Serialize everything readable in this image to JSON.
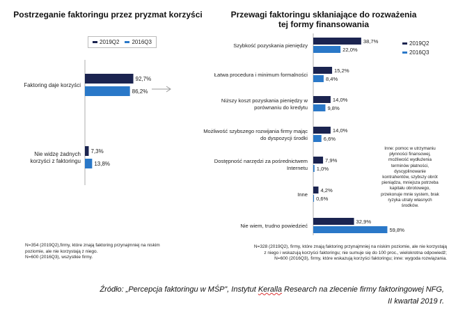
{
  "colors": {
    "q2019": "#1b2450",
    "q2016": "#2a78c8",
    "axis": "#999999",
    "arrow": "#9a9a9a"
  },
  "legend": {
    "q2019_label": "2019Q2",
    "q2016_label": "2016Q3"
  },
  "chart_data": [
    {
      "type": "bar",
      "orientation": "horizontal",
      "title": "Postrzeganie faktoringu przez pryzmat korzyści",
      "categories": [
        "Faktoring daje korzyści",
        "Nie widzę żadnych korzyści z faktoringu"
      ],
      "category_lines": [
        [
          "Faktoring daje korzyści"
        ],
        [
          "Nie widzę żadnych",
          "korzyści z faktoringu"
        ]
      ],
      "series": [
        {
          "name": "2019Q2",
          "values": [
            92.7,
            7.3
          ],
          "labels": [
            "92,7%",
            "7,3%"
          ]
        },
        {
          "name": "2016Q3",
          "values": [
            86.2,
            13.8
          ],
          "labels": [
            "86,2%",
            "13,8%"
          ]
        }
      ],
      "xlim": [
        0,
        100
      ],
      "note": [
        "N=354 (2019Q2),firmy, które znają faktoring przynajmniej na niskim",
        "poziomie, ale nie korzystają z niego.",
        "N=600 (2016Q3), wszystkie firmy."
      ]
    },
    {
      "type": "bar",
      "orientation": "horizontal",
      "title": "Przewagi faktoringu skłaniające do rozważenia tej formy finansowania",
      "title_lines": [
        "Przewagi faktoringu skłaniające do rozważenia",
        "tej formy finansowania"
      ],
      "categories": [
        "Szybkość pozyskania pieniędzy",
        "Łatwa procedura i minimum formalności",
        "Niższy koszt pozyskania pieniędzy w porównaniu do kredytu",
        "Możliwość szybszego rozwijania firmy mając do dyspozycji środki",
        "Dostępność narzędzi za pośrednictwem Internetu",
        "Inne",
        "Nie wiem, trudno powiedzieć"
      ],
      "category_lines": [
        [
          "Szybkość pozyskania pieniędzy"
        ],
        [
          "Łatwa procedura i minimum formalności"
        ],
        [
          "Niższy koszt pozyskania pieniędzy w",
          "porównaniu do kredytu"
        ],
        [
          "Możliwość szybszego rozwijania firmy mając",
          "do dyspozycji środki"
        ],
        [
          "Dostępność narzędzi za pośrednictwem",
          "Internetu"
        ],
        [
          "Inne"
        ],
        [
          "Nie wiem, trudno powiedzieć"
        ]
      ],
      "series": [
        {
          "name": "2019Q2",
          "values": [
            38.7,
            15.2,
            14.0,
            14.0,
            7.9,
            4.2,
            32.9
          ],
          "labels": [
            "38,7%",
            "15,2%",
            "14,0%",
            "14,0%",
            "7,9%",
            "4,2%",
            "32,9%"
          ]
        },
        {
          "name": "2016Q3",
          "values": [
            22.0,
            8.4,
            9.8,
            6.6,
            1.0,
            0.6,
            59.8
          ],
          "labels": [
            "22,0%",
            "8,4%",
            "9,8%",
            "6,6%",
            "1,0%",
            "0,6%",
            "59,8%"
          ]
        }
      ],
      "xlim": [
        0,
        60
      ],
      "inne_note": [
        "Inne: pomoc w utrzymaniu",
        "płynności finansowej,",
        "możliwość wydłużenia",
        "terminów płatności,",
        "dyscyplinowanie",
        "kontrahentów, szybszy obrót",
        "pieniądza, mniejsza potrzeba",
        "kapitału obrotowego,",
        "przekonuje mnie system, brak",
        "ryzyka utraty własnych",
        "środków."
      ],
      "note": [
        "N=328 (2019Q2), firmy, które znają faktoring przynajmniej na niskim poziomie, ale nie korzystają",
        "z niego i wskazują korzyści faktoringu; nie sumuje się do 100 proc., wielokrotna odpowiedź;",
        "N=600 (2016Q3), firmy, które wskazują korzyści faktoringu; inne: wygoda rozwiązania."
      ]
    }
  ],
  "source": {
    "line1_a": "Źródło: „Percepcja faktoringu w MŚP”, Instytut ",
    "line1_b": "Keralla",
    "line1_c": " Research na zlecenie firmy faktoringowej NFG,",
    "line2": "II kwartał 2019 r."
  }
}
